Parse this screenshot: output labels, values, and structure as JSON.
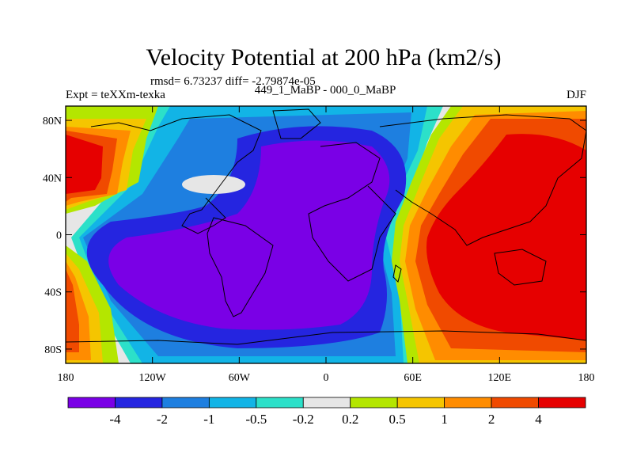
{
  "chart_data": {
    "type": "heatmap",
    "title": "Velocity Potential at 200 hPa (km2/s)",
    "stats_text": "rmsd= 6.73237 diff= -2.79874e-05",
    "left_label": "Expt = teXXm-texka",
    "center_label": "449_1_MaBP - 000_0_MaBP",
    "right_label": "DJF",
    "x_ticks": [
      "180",
      "120W",
      "60W",
      "0",
      "60E",
      "120E",
      "180"
    ],
    "x_tick_values": [
      -180,
      -120,
      -60,
      0,
      60,
      120,
      180
    ],
    "y_ticks": [
      "80N",
      "40N",
      "0",
      "40S",
      "80S"
    ],
    "y_tick_values": [
      80,
      40,
      0,
      -40,
      -80
    ],
    "xlim": [
      -180,
      180
    ],
    "ylim": [
      -90,
      90
    ],
    "colorbar_labels": [
      "-4",
      "-2",
      "-1",
      "-0.5",
      "-0.2",
      "0.2",
      "0.5",
      "1",
      "2",
      "4"
    ],
    "colorbar_colors": [
      "#7a00e6",
      "#2525e0",
      "#1e7fe0",
      "#12b4e6",
      "#2ce0c9",
      "#e6e6e6",
      "#b4e600",
      "#f5c500",
      "#ff8c00",
      "#f04a00",
      "#e60000"
    ],
    "map_colors": {
      "neg5": "#7a00e6",
      "neg4": "#2525e0",
      "neg3": "#1e7fe0",
      "neg2": "#12b4e6",
      "neg1": "#2ce0c9",
      "zero": "#e6e6e6",
      "pos1": "#b4e600",
      "pos2": "#f5c500",
      "pos3": "#ff8c00",
      "pos4": "#f04a00",
      "pos5": "#e60000"
    }
  }
}
